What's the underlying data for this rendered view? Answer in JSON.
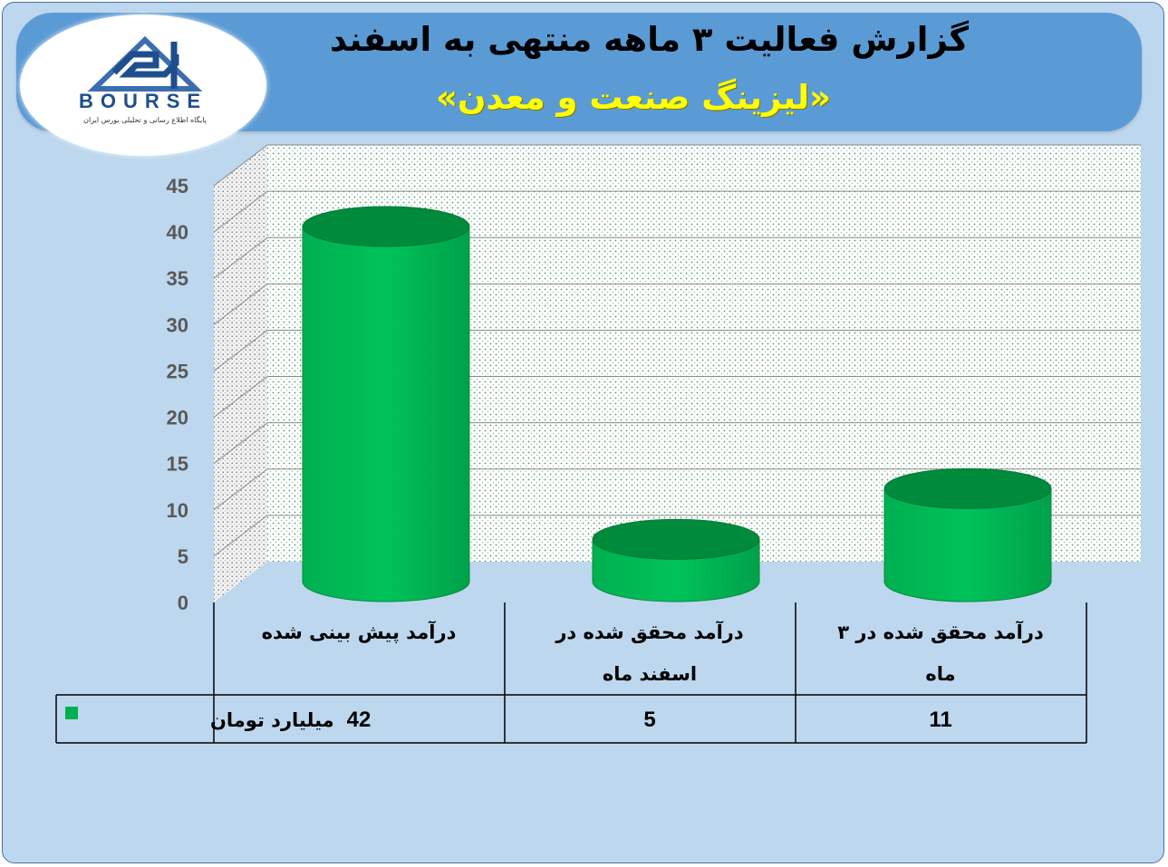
{
  "header": {
    "title": "گزارش فعالیت ۳ ماهه منتهی به اسفند",
    "subtitle": "«لیزینگ صنعت و معدن»"
  },
  "logo": {
    "brand": "BOURSE",
    "tagline": "پایگاه اطلاع رسانی و تحلیلی بورس ایران",
    "icon": "24-triangle-logo-icon"
  },
  "colors": {
    "bar": "#00b050",
    "bar_dark": "#008a3c",
    "header_bg": "#5b9bd5",
    "frame_bg": "#bdd7ee",
    "subtitle": "#ffff00"
  },
  "chart_data": {
    "type": "bar",
    "style": "3d-cylinder",
    "categories": [
      [
        "درآمد پیش بینی شده"
      ],
      [
        "درآمد محقق شده در",
        "اسفند ماه"
      ],
      [
        "درآمد محقق شده در ۳",
        "ماه"
      ]
    ],
    "series": [
      {
        "name": "میلیارد تومان",
        "values": [
          42,
          5,
          11
        ]
      }
    ],
    "value_labels": [
      "42",
      "5",
      "11"
    ],
    "y_ticks": [
      "0",
      "5",
      "10",
      "15",
      "20",
      "25",
      "30",
      "35",
      "40",
      "45"
    ],
    "ylim": [
      0,
      45
    ],
    "grid": true,
    "legend": "data-table"
  }
}
